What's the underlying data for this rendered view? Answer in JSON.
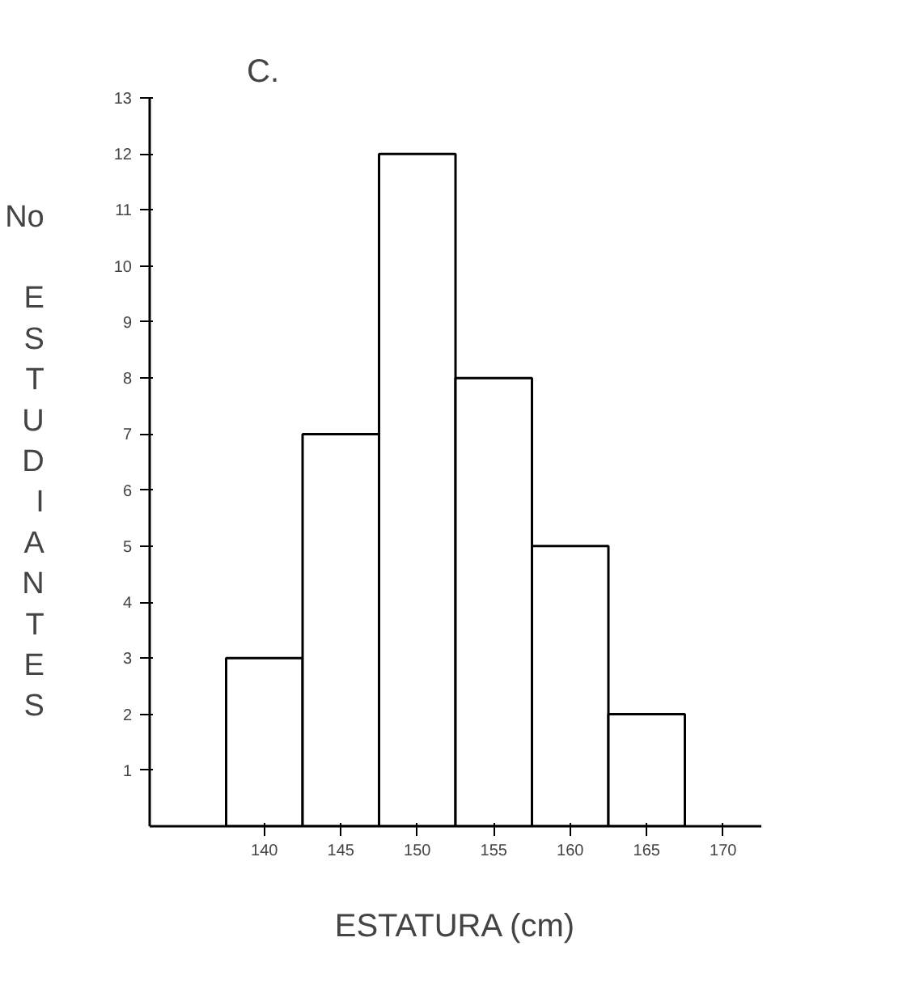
{
  "chart_data": {
    "type": "histogram",
    "title": "C.",
    "xlabel": "ESTATURA (cm)",
    "ylabel": "No ESTUDIANTES",
    "bins": [
      137.5,
      142.5,
      147.5,
      152.5,
      157.5,
      162.5,
      167.5
    ],
    "values": [
      3,
      7,
      12,
      8,
      5,
      2
    ],
    "color": "#ffffff",
    "xlim": [
      132.5,
      172.5
    ],
    "xticks": [
      140,
      145,
      150,
      155,
      160,
      165,
      170
    ],
    "ylim": [
      0,
      13
    ],
    "yticks": [
      1,
      2,
      3,
      4,
      5,
      6,
      7,
      8,
      9,
      10,
      11,
      12,
      13
    ],
    "grid": false
  }
}
